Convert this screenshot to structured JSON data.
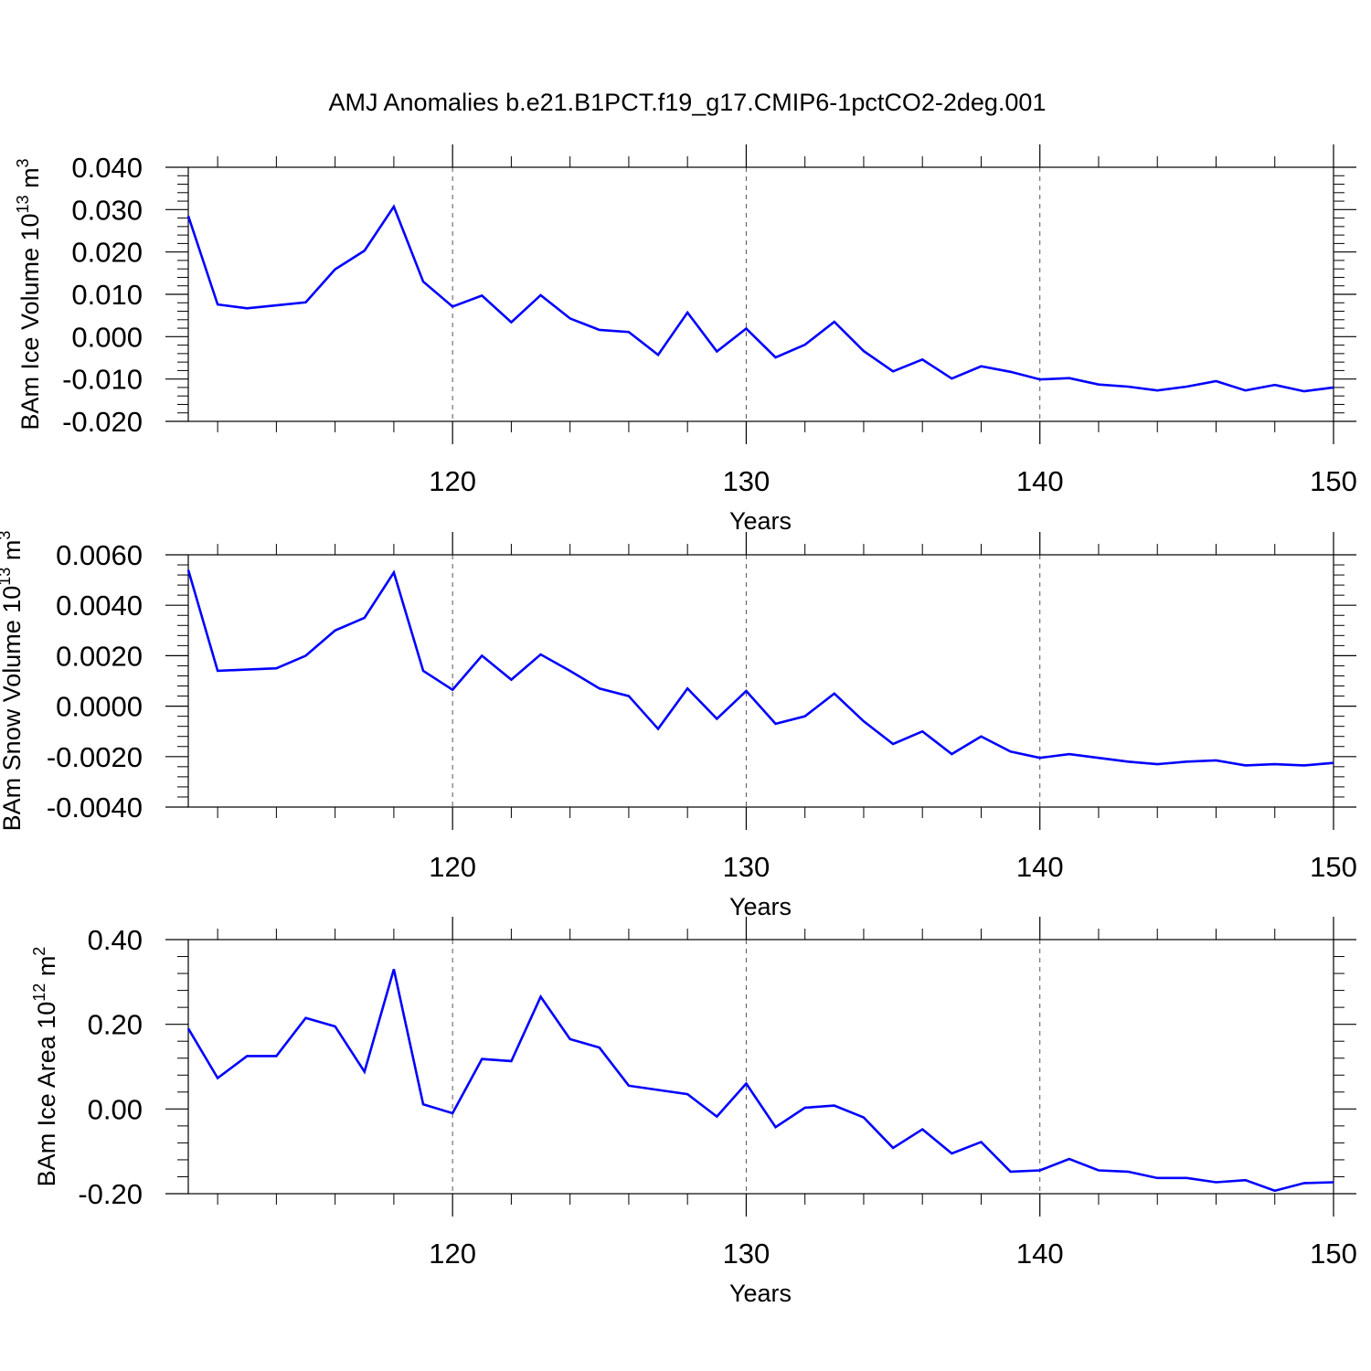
{
  "figure": {
    "title": "AMJ Anomalies b.e21.B1PCT.f19_g17.CMIP6-1pctCO2-2deg.001",
    "line_color": "#0000ff",
    "grid_color": "#555555"
  },
  "chart_data": [
    {
      "type": "line",
      "ylabel": "BAm Ice Volume 10",
      "ylabel_exp": "13",
      "ylabel_unit": " m",
      "ylabel_unit_exp": "3",
      "xlabel": "Years",
      "xlim": [
        111,
        150
      ],
      "ylim": [
        -0.02,
        0.04
      ],
      "xticks": [
        120,
        130,
        140,
        150
      ],
      "xtick_labels": [
        "120",
        "130",
        "140",
        "150"
      ],
      "yticks": [
        -0.02,
        -0.01,
        0.0,
        0.01,
        0.02,
        0.03,
        0.04
      ],
      "ytick_labels": [
        "-0.020",
        "-0.010",
        "0.000",
        "0.010",
        "0.020",
        "0.030",
        "0.040"
      ],
      "grid": "dashed vertical at major x ticks",
      "x": [
        111,
        112,
        113,
        114,
        115,
        116,
        117,
        118,
        119,
        120,
        121,
        122,
        123,
        124,
        125,
        126,
        127,
        128,
        129,
        130,
        131,
        132,
        133,
        134,
        135,
        136,
        137,
        138,
        139,
        140,
        141,
        142,
        143,
        144,
        145,
        146,
        147,
        148,
        149,
        150
      ],
      "series": [
        {
          "values": [
            0.0285,
            0.0076,
            0.0067,
            0.0074,
            0.0081,
            0.0159,
            0.0203,
            0.0307,
            0.013,
            0.0071,
            0.0097,
            0.0034,
            0.0098,
            0.0043,
            0.0016,
            0.0011,
            -0.0043,
            0.0057,
            -0.0035,
            0.0019,
            -0.0049,
            -0.0019,
            0.0035,
            -0.0034,
            -0.0082,
            -0.0054,
            -0.0099,
            -0.007,
            -0.0083,
            -0.0101,
            -0.0098,
            -0.0113,
            -0.0118,
            -0.0127,
            -0.0118,
            -0.0105,
            -0.0127,
            -0.0114,
            -0.0129,
            -0.012
          ]
        }
      ]
    },
    {
      "type": "line",
      "ylabel": "BAm Snow Volume 10",
      "ylabel_exp": "13",
      "ylabel_unit": " m",
      "ylabel_unit_exp": "3",
      "xlabel": "Years",
      "xlim": [
        111,
        150
      ],
      "ylim": [
        -0.004,
        0.006
      ],
      "xticks": [
        120,
        130,
        140,
        150
      ],
      "xtick_labels": [
        "120",
        "130",
        "140",
        "150"
      ],
      "yticks": [
        -0.004,
        -0.002,
        0.0,
        0.002,
        0.004,
        0.006
      ],
      "ytick_labels": [
        "-0.0040",
        "-0.0020",
        "0.0000",
        "0.0020",
        "0.0040",
        "0.0060"
      ],
      "grid": "dashed vertical at major x ticks",
      "x": [
        111,
        112,
        113,
        114,
        115,
        116,
        117,
        118,
        119,
        120,
        121,
        122,
        123,
        124,
        125,
        126,
        127,
        128,
        129,
        130,
        131,
        132,
        133,
        134,
        135,
        136,
        137,
        138,
        139,
        140,
        141,
        142,
        143,
        144,
        145,
        146,
        147,
        148,
        149,
        150
      ],
      "series": [
        {
          "values": [
            0.0054,
            0.0014,
            0.00145,
            0.0015,
            0.002,
            0.003,
            0.0035,
            0.0053,
            0.0014,
            0.00065,
            0.002,
            0.00105,
            0.00205,
            0.0014,
            0.0007,
            0.0004,
            -0.0009,
            0.0007,
            -0.0005,
            0.0006,
            -0.0007,
            -0.0004,
            0.0005,
            -0.0006,
            -0.0015,
            -0.001,
            -0.0019,
            -0.0012,
            -0.0018,
            -0.00205,
            -0.0019,
            -0.00205,
            -0.0022,
            -0.0023,
            -0.0022,
            -0.00215,
            -0.00235,
            -0.0023,
            -0.00235,
            -0.00225
          ]
        }
      ]
    },
    {
      "type": "line",
      "ylabel": "BAm Ice Area 10",
      "ylabel_exp": "12",
      "ylabel_unit": " m",
      "ylabel_unit_exp": "2",
      "xlabel": "Years",
      "xlim": [
        111,
        150
      ],
      "ylim": [
        -0.2,
        0.4
      ],
      "xticks": [
        120,
        130,
        140,
        150
      ],
      "xtick_labels": [
        "120",
        "130",
        "140",
        "150"
      ],
      "yticks": [
        -0.2,
        0.0,
        0.2,
        0.4
      ],
      "ytick_labels": [
        "-0.20",
        "0.00",
        "0.20",
        "0.40"
      ],
      "grid": "dashed vertical at major x ticks",
      "x": [
        111,
        112,
        113,
        114,
        115,
        116,
        117,
        118,
        119,
        120,
        121,
        122,
        123,
        124,
        125,
        126,
        127,
        128,
        129,
        130,
        131,
        132,
        133,
        134,
        135,
        136,
        137,
        138,
        139,
        140,
        141,
        142,
        143,
        144,
        145,
        146,
        147,
        148,
        149,
        150
      ],
      "series": [
        {
          "values": [
            0.19,
            0.073,
            0.125,
            0.125,
            0.215,
            0.195,
            0.088,
            0.33,
            0.011,
            -0.01,
            0.118,
            0.113,
            0.265,
            0.165,
            0.145,
            0.055,
            0.045,
            0.035,
            -0.018,
            0.06,
            -0.043,
            0.003,
            0.008,
            -0.02,
            -0.092,
            -0.048,
            -0.105,
            -0.078,
            -0.148,
            -0.145,
            -0.118,
            -0.145,
            -0.148,
            -0.163,
            -0.163,
            -0.173,
            -0.168,
            -0.193,
            -0.175,
            -0.173
          ]
        }
      ]
    }
  ]
}
